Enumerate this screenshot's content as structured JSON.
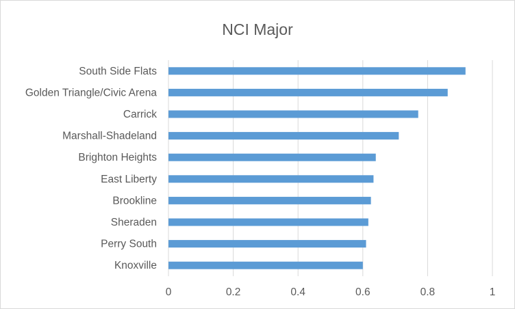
{
  "chart_data": {
    "type": "bar",
    "orientation": "horizontal",
    "title": "NCI Major",
    "categories": [
      "South Side Flats",
      "Golden Triangle/Civic Arena",
      "Carrick",
      "Marshall-Shadeland",
      "Brighton Heights",
      "East Liberty",
      "Brookline",
      "Sheraden",
      "Perry South",
      "Knoxville"
    ],
    "values": [
      0.917,
      0.862,
      0.771,
      0.711,
      0.64,
      0.633,
      0.625,
      0.617,
      0.61,
      0.6
    ],
    "xlim": [
      0,
      1
    ],
    "xticks": [
      "0",
      "0.2",
      "0.4",
      "0.6",
      "0.8",
      "1"
    ],
    "xlabel": "",
    "ylabel": "",
    "grid": "vertical",
    "legend": "none",
    "bar_color": "#5b9bd5"
  }
}
